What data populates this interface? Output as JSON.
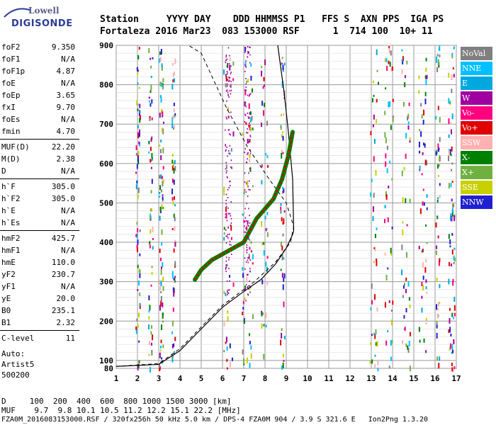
{
  "logo": {
    "top": "Lowell",
    "bottom": "DIGISONDE"
  },
  "header": {
    "line1": "Station     YYYY DAY    DDD HHMMSS P1   FFS S  AXN PPS  IGA PS",
    "line2": "Fortaleza 2016 Mar23  083 153000 RSF      1  714 100  10+ 11"
  },
  "params": [
    {
      "k": "foF2",
      "v": "9.350"
    },
    {
      "k": "foF1",
      "v": "N/A"
    },
    {
      "k": "foF1p",
      "v": "4.87"
    },
    {
      "k": "foE",
      "v": "N/A"
    },
    {
      "k": "foEp",
      "v": "3.65"
    },
    {
      "k": "fxI",
      "v": "9.70"
    },
    {
      "k": "foEs",
      "v": "N/A"
    },
    {
      "k": "fmin",
      "v": "4.70"
    },
    {
      "k": "MUF(D)",
      "v": "22.20"
    },
    {
      "k": "M(D)",
      "v": "2.38"
    },
    {
      "k": "D",
      "v": "N/A"
    },
    {
      "k": "h`F",
      "v": "305.0"
    },
    {
      "k": "h`F2",
      "v": "305.0"
    },
    {
      "k": "h`E",
      "v": "N/A"
    },
    {
      "k": "h`Es",
      "v": "N/A"
    },
    {
      "k": "hmF2",
      "v": "425.7"
    },
    {
      "k": "hmF1",
      "v": "N/A"
    },
    {
      "k": "hmE",
      "v": "110.0"
    },
    {
      "k": "yF2",
      "v": "230.7"
    },
    {
      "k": "yF1",
      "v": "N/A"
    },
    {
      "k": "yE",
      "v": "20.0"
    },
    {
      "k": "B0",
      "v": "235.1"
    },
    {
      "k": "B1",
      "v": "2.32"
    },
    {
      "k": "C-level",
      "v": "11"
    }
  ],
  "auto": [
    "Auto:",
    "Artist5",
    "500200"
  ],
  "legend": [
    {
      "label": "NoVal",
      "color": "#808080"
    },
    {
      "label": "NNE",
      "color": "#00c0ff"
    },
    {
      "label": "E",
      "color": "#00a8e0"
    },
    {
      "label": "W",
      "color": "#a000a0"
    },
    {
      "label": "Vo-",
      "color": "#ff0080"
    },
    {
      "label": "Vo+",
      "color": "#e00000"
    },
    {
      "label": "SSW",
      "color": "#ffb0b0"
    },
    {
      "label": "X-",
      "color": "#008000"
    },
    {
      "label": "X+",
      "color": "#70b040"
    },
    {
      "label": "SSE",
      "color": "#c8d000"
    },
    {
      "label": "NNW",
      "color": "#2020d0"
    }
  ],
  "chart_data": {
    "type": "scatter",
    "title": "",
    "xlabel": "",
    "ylabel": "",
    "xlim": [
      1,
      17
    ],
    "ylim": [
      80,
      900
    ],
    "x_ticks": [
      "1",
      "2",
      "3",
      "4",
      "5",
      "6",
      "7",
      "8",
      "9",
      "10",
      "11",
      "12",
      "13",
      "14",
      "15",
      "16",
      "17"
    ],
    "y_ticks": [
      "80",
      "100",
      "200",
      "300",
      "400",
      "500",
      "600",
      "700",
      "800",
      "900"
    ],
    "trace_ordinary": [
      [
        4.7,
        305
      ],
      [
        5.0,
        330
      ],
      [
        5.5,
        355
      ],
      [
        6.0,
        370
      ],
      [
        6.5,
        385
      ],
      [
        7.0,
        400
      ],
      [
        7.3,
        430
      ],
      [
        7.6,
        460
      ],
      [
        8.0,
        485
      ],
      [
        8.4,
        510
      ],
      [
        8.8,
        560
      ],
      [
        9.1,
        620
      ],
      [
        9.3,
        680
      ]
    ],
    "profile_solid": [
      [
        1.0,
        85
      ],
      [
        3.0,
        90
      ],
      [
        4.0,
        125
      ],
      [
        5.0,
        180
      ],
      [
        6.0,
        235
      ],
      [
        7.0,
        275
      ],
      [
        7.8,
        305
      ],
      [
        8.5,
        345
      ],
      [
        9.0,
        385
      ],
      [
        9.3,
        420
      ],
      [
        9.35,
        430
      ],
      [
        9.3,
        560
      ],
      [
        9.1,
        680
      ],
      [
        8.9,
        780
      ],
      [
        8.6,
        900
      ]
    ],
    "profile_dashed": [
      [
        1.0,
        85
      ],
      [
        3.0,
        92
      ],
      [
        4.0,
        130
      ],
      [
        5.0,
        185
      ],
      [
        6.0,
        240
      ],
      [
        7.5,
        300
      ],
      [
        8.5,
        350
      ],
      [
        9.2,
        400
      ],
      [
        9.35,
        440
      ],
      [
        9.0,
        500
      ],
      [
        8.2,
        560
      ],
      [
        7.2,
        640
      ],
      [
        6.2,
        740
      ],
      [
        5.0,
        880
      ],
      [
        4.4,
        900
      ]
    ]
  },
  "footer": {
    "line1": "D     100  200  400  600  800 1000 1500 3000 [km]",
    "line2": "MUF    9.7  9.8 10.1 10.5 11.2 12.2 15.1 22.2 [MHz]",
    "line3": "FZA0M_2016083153000.RSF / 320fx256h 50 kHz 5.0 km / DPS-4 FZA0M 904 / 3.9 S 321.6 E   Ion2Png 1.3.20"
  }
}
